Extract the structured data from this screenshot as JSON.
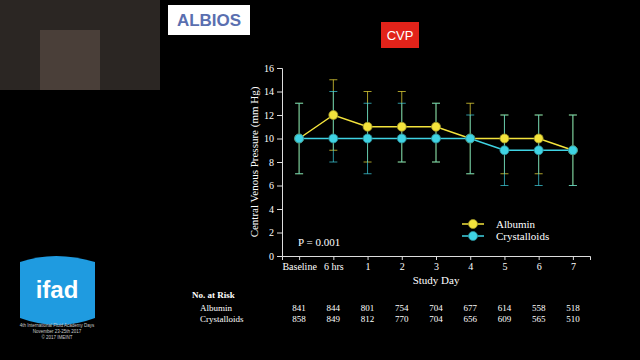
{
  "chart_data": {
    "type": "line",
    "title": "CVP",
    "y_label": "Central Venous Pressure (mm Hg)",
    "x_label": "Study Day",
    "annotation": "P = 0.001",
    "categories": [
      "Baseline",
      "6 hrs",
      "1",
      "2",
      "3",
      "4",
      "5",
      "6",
      "7"
    ],
    "ylim": [
      0,
      16
    ],
    "yticks": [
      0,
      2,
      4,
      6,
      8,
      10,
      12,
      14,
      16
    ],
    "grid": false,
    "legend": "bottom-right",
    "series": [
      {
        "name": "Albumin",
        "color": "#f3e33c",
        "marker": "circle",
        "values": [
          10,
          12,
          11,
          11,
          11,
          10,
          10,
          10,
          9
        ],
        "lower": [
          7,
          9,
          8,
          8,
          8,
          7,
          7,
          7,
          6
        ],
        "upper": [
          13,
          15,
          14,
          14,
          13,
          13,
          12,
          12,
          12
        ]
      },
      {
        "name": "Crystalloids",
        "color": "#3fd3e3",
        "marker": "circle",
        "values": [
          10,
          10,
          10,
          10,
          10,
          10,
          9,
          9,
          9
        ],
        "lower": [
          7,
          8,
          7,
          8,
          8,
          7,
          6,
          6,
          6
        ],
        "upper": [
          13,
          14,
          13,
          13,
          13,
          12,
          12,
          12,
          12
        ]
      }
    ],
    "at_risk": {
      "title": "No. at Risk",
      "rows": [
        {
          "name": "Albumin",
          "values": [
            841,
            844,
            801,
            754,
            704,
            677,
            614,
            558,
            518
          ]
        },
        {
          "name": "Crystalloids",
          "values": [
            858,
            849,
            812,
            770,
            704,
            656,
            609,
            565,
            510
          ]
        }
      ]
    }
  },
  "slide": {
    "logo_text": "ALBIOS",
    "event_logo": "ifad",
    "event_text": [
      "4th International Fluid Academy Days",
      "November 23-25th 2017",
      "© 2017 IMEINT"
    ]
  }
}
